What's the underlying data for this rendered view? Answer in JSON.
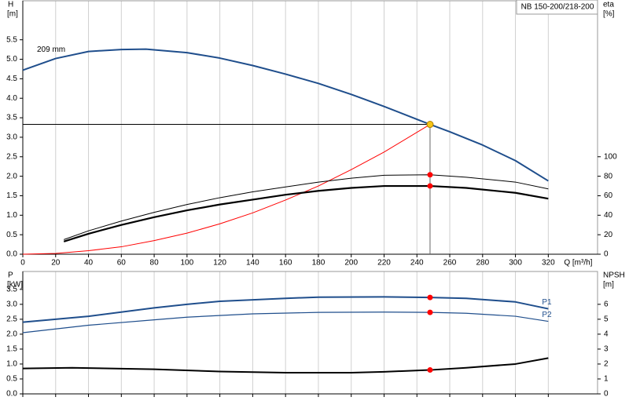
{
  "chart_data": [
    {
      "type": "line",
      "ylabel": "H",
      "yunit": "[m]",
      "y2label": "eta",
      "y2unit": "[%]",
      "xlabel": "Q [m³/h]",
      "annotation": "209 mm",
      "model": "NB 150-200/218-200",
      "xlim": [
        0,
        350
      ],
      "xticks": [
        0,
        20,
        40,
        60,
        80,
        100,
        120,
        140,
        160,
        180,
        200,
        220,
        240,
        260,
        280,
        300,
        320
      ],
      "ylim": [
        0,
        6.5
      ],
      "yticks": [
        {
          "value": 0,
          "label": "0.0"
        },
        0.5,
        {
          "value": 1,
          "label": "1.0"
        },
        1.5,
        {
          "value": 2,
          "label": "2.0"
        },
        2.5,
        {
          "value": 3,
          "label": "3.0"
        },
        3.5,
        {
          "value": 4,
          "label": "4.0"
        },
        4.5,
        {
          "value": 5,
          "label": "5.0"
        },
        5.5
      ],
      "y2lim": [
        0,
        260
      ],
      "y2ticks": [
        0,
        20,
        40,
        60,
        80,
        100
      ],
      "grid": "x",
      "xtick_labels": true,
      "operating_point": {
        "x": 248,
        "y": 3.33,
        "color": "#f5c518"
      },
      "dot_color": "#ff0000",
      "series": [
        {
          "color": "#1f4e8c",
          "x": [
            0,
            20,
            40,
            60,
            75,
            100,
            120,
            140,
            160,
            180,
            200,
            220,
            240,
            248,
            260,
            280,
            300,
            320
          ],
          "values": [
            4.72,
            5.02,
            5.2,
            5.25,
            5.26,
            5.17,
            5.03,
            4.84,
            4.62,
            4.38,
            4.1,
            3.79,
            3.46,
            3.33,
            3.14,
            2.8,
            2.4,
            1.88
          ]
        },
        {
          "color": "#ff0000",
          "x": [
            0,
            20,
            40,
            60,
            80,
            100,
            120,
            140,
            160,
            180,
            200,
            220,
            248
          ],
          "values": [
            0,
            0.02,
            0.09,
            0.19,
            0.35,
            0.54,
            0.78,
            1.06,
            1.39,
            1.75,
            2.17,
            2.62,
            3.33
          ]
        },
        {
          "color": "#000000",
          "axis": "y2",
          "x": [
            25,
            40,
            60,
            80,
            100,
            120,
            140,
            160,
            180,
            200,
            220,
            248,
            270,
            300,
            320
          ],
          "values": [
            15,
            24,
            34,
            43,
            51,
            58,
            64,
            69,
            74,
            78,
            81,
            81.5,
            79,
            74,
            67
          ]
        },
        {
          "color": "#000000",
          "axis": "y2",
          "x": [
            25,
            40,
            60,
            80,
            100,
            120,
            140,
            160,
            180,
            200,
            220,
            248,
            270,
            300,
            320
          ],
          "values": [
            13,
            21,
            30,
            38,
            45,
            51,
            56,
            61,
            65,
            68,
            70,
            70,
            68,
            63,
            57
          ]
        }
      ]
    },
    {
      "type": "line",
      "ylabel": "P",
      "yunit": "[kW]",
      "y2label": "NPSH",
      "y2unit": "[m]",
      "xlim": [
        0,
        350
      ],
      "xticks": [
        0,
        20,
        40,
        60,
        80,
        100,
        120,
        140,
        160,
        180,
        200,
        220,
        240,
        260,
        280,
        300,
        320
      ],
      "ylim": [
        0,
        4.1
      ],
      "yticks": [
        {
          "value": 0,
          "label": "0.0"
        },
        0.5,
        {
          "value": 1,
          "label": "1.0"
        },
        1.5,
        {
          "value": 2,
          "label": "2.0"
        },
        2.5,
        {
          "value": 3,
          "label": "3.0"
        },
        3.5
      ],
      "y2lim": [
        0,
        8.2
      ],
      "y2ticks": [
        0,
        1,
        2,
        3,
        4,
        5,
        6
      ],
      "grid": "x",
      "xtick_labels": false,
      "operating_point": {
        "x": 248
      },
      "dot_color": "#ff0000",
      "series": [
        {
          "name": "P1",
          "color": "#1f4e8c",
          "x": [
            0,
            40,
            80,
            100,
            120,
            160,
            180,
            220,
            248,
            270,
            300,
            320
          ],
          "values": [
            2.4,
            2.6,
            2.88,
            3.0,
            3.1,
            3.2,
            3.24,
            3.25,
            3.23,
            3.2,
            3.08,
            2.85
          ]
        },
        {
          "name": "P2",
          "color": "#1f4e8c",
          "x": [
            0,
            40,
            80,
            100,
            140,
            180,
            220,
            248,
            270,
            300,
            320
          ],
          "values": [
            2.05,
            2.3,
            2.48,
            2.57,
            2.68,
            2.73,
            2.74,
            2.73,
            2.7,
            2.6,
            2.43
          ]
        },
        {
          "color": "#000000",
          "axis": "y2",
          "x": [
            0,
            30,
            80,
            120,
            160,
            200,
            220,
            248,
            270,
            300,
            320
          ],
          "values": [
            1.7,
            1.75,
            1.65,
            1.5,
            1.42,
            1.42,
            1.48,
            1.6,
            1.75,
            2.0,
            2.4
          ]
        }
      ]
    }
  ]
}
